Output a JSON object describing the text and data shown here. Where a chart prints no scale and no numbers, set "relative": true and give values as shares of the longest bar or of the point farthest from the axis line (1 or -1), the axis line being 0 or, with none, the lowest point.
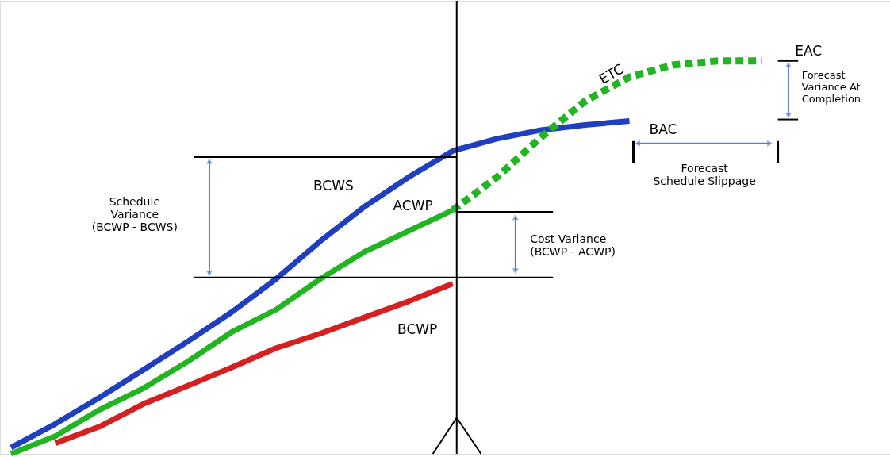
{
  "chart_data": {
    "type": "line",
    "relative": true,
    "categories": [
      null,
      null,
      null,
      null,
      null,
      null,
      null,
      null,
      null,
      null,
      null,
      null,
      null,
      null,
      null,
      null,
      null,
      null
    ],
    "series": [
      {
        "name": "BCWS",
        "color": "#1f3fbf",
        "line_style": "solid",
        "values": [
          0.016,
          0.076,
          0.143,
          0.214,
          0.286,
          0.361,
          0.445,
          0.541,
          0.629,
          0.704,
          0.771,
          0.802,
          0.824,
          0.837,
          0.847,
          null,
          null,
          null
        ]
      },
      {
        "name": "ACWP",
        "color": "#22b422",
        "line_style": "solid",
        "values": [
          0,
          0.045,
          0.112,
          0.167,
          0.235,
          0.31,
          0.367,
          0.445,
          0.514,
          0.567,
          0.62,
          null,
          null,
          null,
          null,
          null,
          null,
          null
        ]
      },
      {
        "name": "ETC",
        "color": "#22b422",
        "line_style": "dashed",
        "values": [
          null,
          null,
          null,
          null,
          null,
          null,
          null,
          null,
          null,
          null,
          0.62,
          0.704,
          0.806,
          0.898,
          0.959,
          0.99,
          1,
          1
        ]
      },
      {
        "name": "BCWP",
        "color": "#d42020",
        "line_style": "solid",
        "values": [
          null,
          0.027,
          0.069,
          0.127,
          0.173,
          0.22,
          0.269,
          0.306,
          0.347,
          0.388,
          0.433,
          null,
          null,
          null,
          null,
          null,
          null,
          null
        ]
      }
    ],
    "annotations": [
      "BAC",
      "EAC",
      "Schedule\nVariance\n(BCWP - BCWS)",
      "Cost Variance\n(BCWP - ACWP)",
      "Forecast\nSchedule Slippage",
      "Forecast\nVariance At\nCompletion"
    ],
    "ref_lines": [
      {
        "axis": "y",
        "value": 0.755,
        "color": "#000000"
      },
      {
        "axis": "y",
        "value": 0.449,
        "color": "#000000"
      },
      {
        "axis": "y",
        "value": 0.616,
        "color": "#000000"
      }
    ],
    "marker": "none",
    "legend": false,
    "grid": false
  }
}
